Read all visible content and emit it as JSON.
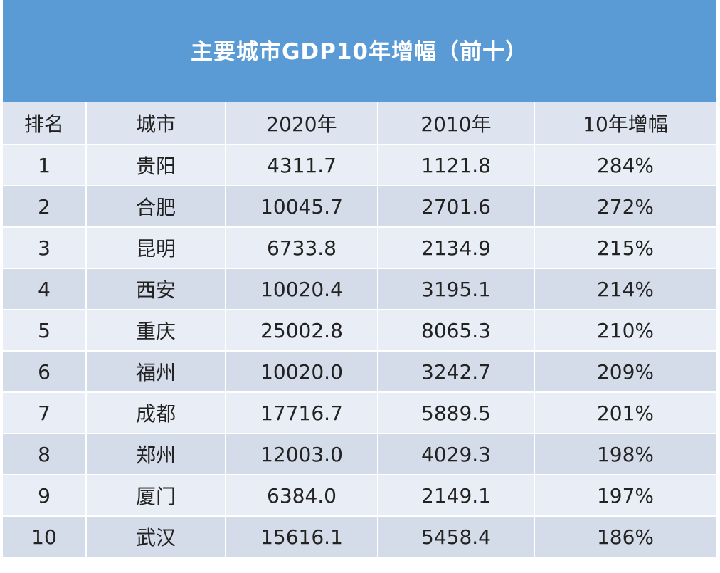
{
  "chart_data": {
    "type": "table",
    "title": "主要城市GDP10年增幅（前十）",
    "columns": [
      "排名",
      "城市",
      "2020年",
      "2010年",
      "10年增幅"
    ],
    "rows": [
      [
        "1",
        "贵阳",
        "4311.7",
        "1121.8",
        "284%"
      ],
      [
        "2",
        "合肥",
        "10045.7",
        "2701.6",
        "272%"
      ],
      [
        "3",
        "昆明",
        "6733.8",
        "2134.9",
        "215%"
      ],
      [
        "4",
        "西安",
        "10020.4",
        "3195.1",
        "214%"
      ],
      [
        "5",
        "重庆",
        "25002.8",
        "8065.3",
        "210%"
      ],
      [
        "6",
        "福州",
        "10020.0",
        "3242.7",
        "209%"
      ],
      [
        "7",
        "成都",
        "17716.7",
        "5889.5",
        "201%"
      ],
      [
        "8",
        "郑州",
        "12003.0",
        "4029.3",
        "198%"
      ],
      [
        "9",
        "厦门",
        "6384.0",
        "2149.1",
        "197%"
      ],
      [
        "10",
        "武汉",
        "15616.1",
        "5458.4",
        "186%"
      ]
    ]
  },
  "colors": {
    "title_background": "#5b9bd5",
    "header_background": "#dde4ef",
    "row_light": "#e9edf6",
    "row_dark": "#d4dce9"
  }
}
